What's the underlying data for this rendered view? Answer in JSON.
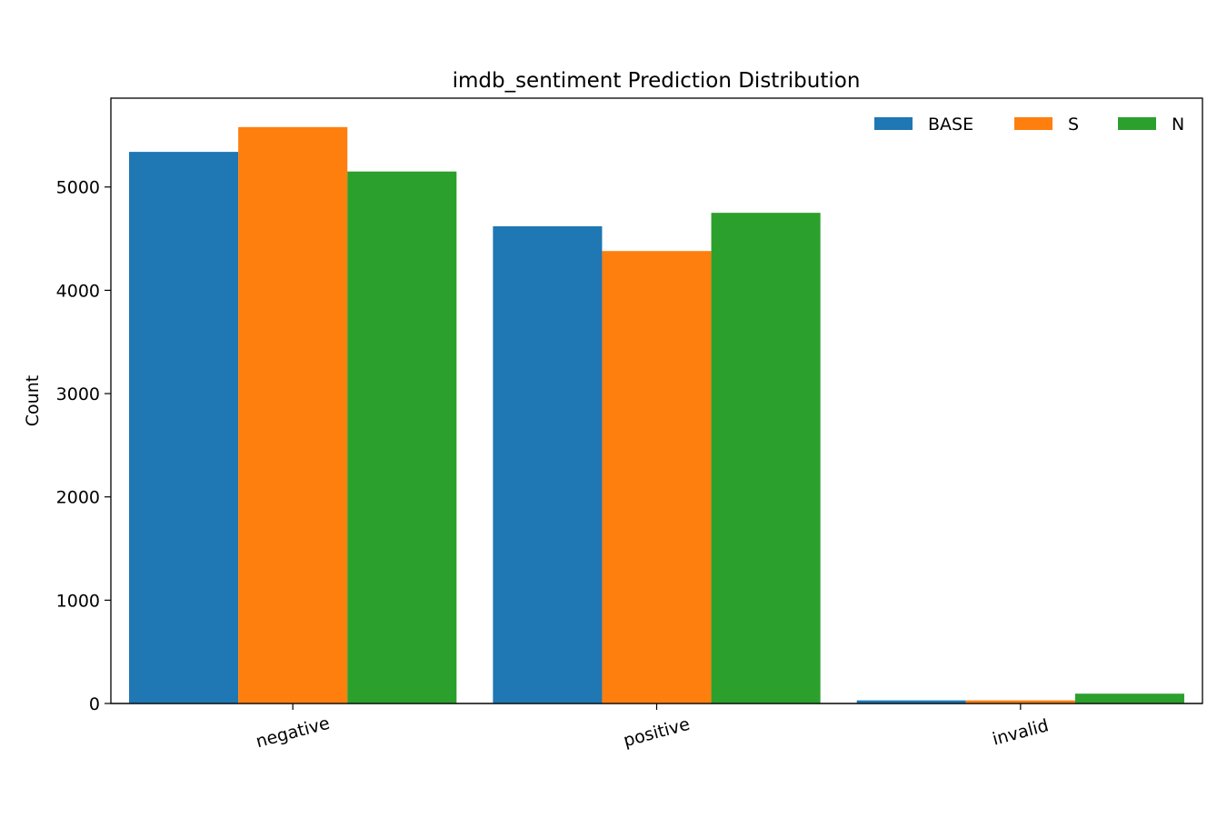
{
  "chart_data": {
    "type": "bar",
    "title": "imdb_sentiment Prediction Distribution",
    "xlabel": "",
    "ylabel": "Count",
    "categories": [
      "negative",
      "positive",
      "invalid"
    ],
    "series": [
      {
        "name": "BASE",
        "color": "#1f77b4",
        "values": [
          5340,
          4620,
          30
        ]
      },
      {
        "name": "S",
        "color": "#ff7f0e",
        "values": [
          5580,
          4380,
          30
        ]
      },
      {
        "name": "N",
        "color": "#2ca02c",
        "values": [
          5150,
          4750,
          95
        ]
      }
    ],
    "ylim": [
      0,
      5860
    ],
    "yticks": [
      0,
      1000,
      2000,
      3000,
      4000,
      5000
    ],
    "ytick_labels": [
      "0",
      "1000",
      "2000",
      "3000",
      "4000",
      "5000"
    ],
    "grid": false,
    "legend": {
      "placement": "top-right",
      "columns": 3
    }
  }
}
